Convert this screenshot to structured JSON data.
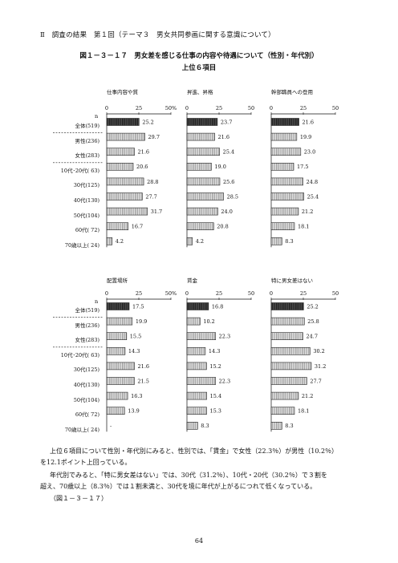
{
  "header": "Ⅱ　調査の結果　第１回（テーマ３　男女共同参画に関する意識について）",
  "figure": {
    "title": "図１－３－１７　男女差を感じる仕事の内容や待遇について（性別・年代別）",
    "subtitle": "上位６項目"
  },
  "n_label": "n",
  "rows": [
    "全体(519)",
    "男性(236)",
    "女性(283)",
    "10代･20代( 63)",
    "30代(125)",
    "40代(130)",
    "50代(104)",
    "60代( 72)",
    "70歳以上( 24)"
  ],
  "colors": {
    "total": "#333333",
    "bar": "#d8d8d8",
    "border": "#222222"
  },
  "chart_data": [
    {
      "type": "bar",
      "title": "仕事内容や質",
      "ylim": [
        0,
        50
      ],
      "ticks": [
        "0",
        "25",
        "50%"
      ],
      "categories": [
        "全体(519)",
        "男性(236)",
        "女性(283)",
        "10代･20代( 63)",
        "30代(125)",
        "40代(130)",
        "50代(104)",
        "60代( 72)",
        "70歳以上( 24)"
      ],
      "values": [
        25.2,
        29.7,
        21.6,
        20.6,
        28.8,
        27.7,
        31.7,
        16.7,
        4.2
      ],
      "labels": [
        "25.2",
        "29.7",
        "21.6",
        "20.6",
        "28.8",
        "27.7",
        "31.7",
        "16.7",
        "4.2"
      ]
    },
    {
      "type": "bar",
      "title": "昇進、昇格",
      "ylim": [
        0,
        50
      ],
      "ticks": [
        "0",
        "25",
        "50"
      ],
      "categories": [
        "全体(519)",
        "男性(236)",
        "女性(283)",
        "10代･20代( 63)",
        "30代(125)",
        "40代(130)",
        "50代(104)",
        "60代( 72)",
        "70歳以上( 24)"
      ],
      "values": [
        23.7,
        21.6,
        25.4,
        19.0,
        25.6,
        28.5,
        24.0,
        20.8,
        4.2
      ],
      "labels": [
        "23.7",
        "21.6",
        "25.4",
        "19.0",
        "25.6",
        "28.5",
        "24.0",
        "20.8",
        "4.2"
      ]
    },
    {
      "type": "bar",
      "title": "幹部職員への登用",
      "ylim": [
        0,
        50
      ],
      "ticks": [
        "0",
        "25",
        "50"
      ],
      "categories": [
        "全体(519)",
        "男性(236)",
        "女性(283)",
        "10代･20代( 63)",
        "30代(125)",
        "40代(130)",
        "50代(104)",
        "60代( 72)",
        "70歳以上( 24)"
      ],
      "values": [
        21.6,
        19.9,
        23.0,
        17.5,
        24.8,
        25.4,
        21.2,
        18.1,
        8.3
      ],
      "labels": [
        "21.6",
        "19.9",
        "23.0",
        "17.5",
        "24.8",
        "25.4",
        "21.2",
        "18.1",
        "8.3"
      ]
    },
    {
      "type": "bar",
      "title": "配置場所",
      "ylim": [
        0,
        50
      ],
      "ticks": [
        "0",
        "25",
        "50%"
      ],
      "categories": [
        "全体(519)",
        "男性(236)",
        "女性(283)",
        "10代･20代( 63)",
        "30代(125)",
        "40代(130)",
        "50代(104)",
        "60代( 72)",
        "70歳以上( 24)"
      ],
      "values": [
        17.5,
        19.9,
        15.5,
        14.3,
        21.6,
        21.5,
        16.3,
        13.9,
        0
      ],
      "labels": [
        "17.5",
        "19.9",
        "15.5",
        "14.3",
        "21.6",
        "21.5",
        "16.3",
        "13.9",
        "-"
      ]
    },
    {
      "type": "bar",
      "title": "賃金",
      "ylim": [
        0,
        50
      ],
      "ticks": [
        "0",
        "25",
        "50"
      ],
      "categories": [
        "全体(519)",
        "男性(236)",
        "女性(283)",
        "10代･20代( 63)",
        "30代(125)",
        "40代(130)",
        "50代(104)",
        "60代( 72)",
        "70歳以上( 24)"
      ],
      "values": [
        16.8,
        10.2,
        22.3,
        14.3,
        15.2,
        22.3,
        15.4,
        15.3,
        8.3
      ],
      "labels": [
        "16.8",
        "10.2",
        "22.3",
        "14.3",
        "15.2",
        "22.3",
        "15.4",
        "15.3",
        "8.3"
      ]
    },
    {
      "type": "bar",
      "title": "特に男女差はない",
      "ylim": [
        0,
        50
      ],
      "ticks": [
        "0",
        "25",
        "50"
      ],
      "categories": [
        "全体(519)",
        "男性(236)",
        "女性(283)",
        "10代･20代( 63)",
        "30代(125)",
        "40代(130)",
        "50代(104)",
        "60代( 72)",
        "70歳以上( 24)"
      ],
      "values": [
        25.2,
        25.8,
        24.7,
        30.2,
        31.2,
        27.7,
        21.2,
        18.1,
        8.3
      ],
      "labels": [
        "25.2",
        "25.8",
        "24.7",
        "30.2",
        "31.2",
        "27.7",
        "21.2",
        "18.1",
        "8.3"
      ]
    }
  ],
  "paragraphs": [
    "上位６項目について性別・年代別にみると、性別では、「賃金」で女性（22.3％）が男性（10.2％）",
    "を12.1ポイント上回っている。",
    "年代別でみると、「特に男女差はない」では、30代（31.2％）、10代・20代（30.2％）で３割を",
    "超え、70歳以上（8.3％）では１割未満と、30代を境に年代が上がるにつれて低くなっている。",
    "（図１－３－１７）"
  ],
  "page_number": "64"
}
